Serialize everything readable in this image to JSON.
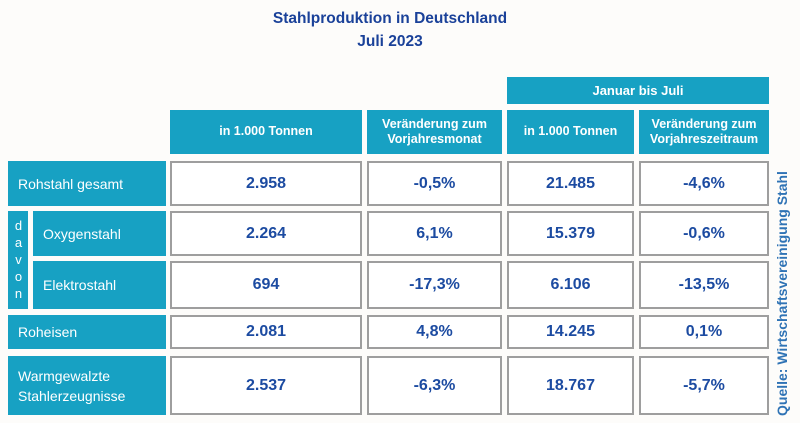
{
  "title": {
    "line1": "Stahlproduktion in Deutschland",
    "line2": "Juli 2023"
  },
  "table": {
    "span_header": "Januar bis Juli",
    "col_headers": [
      "in 1.000 Tonnen",
      "Veränderung zum Vorjahresmonat",
      "in 1.000 Tonnen",
      "Veränderung zum Vorjahreszeitraum"
    ],
    "davon_label": "davon",
    "rows": [
      {
        "label": "Rohstahl gesamt",
        "values": [
          "2.958",
          "-0,5%",
          "21.485",
          "-4,6%"
        ]
      },
      {
        "label": "Oxygenstahl",
        "values": [
          "2.264",
          "6,1%",
          "15.379",
          "-0,6%"
        ]
      },
      {
        "label": "Elektrostahl",
        "values": [
          "694",
          "-17,3%",
          "6.106",
          "-13,5%"
        ]
      },
      {
        "label": "Roheisen",
        "values": [
          "2.081",
          "4,8%",
          "14.245",
          "0,1%"
        ]
      },
      {
        "label": "Warmgewalzte Stahlerzeugnisse",
        "values": [
          "2.537",
          "-6,3%",
          "18.767",
          "-5,7%"
        ]
      }
    ]
  },
  "source": "Quelle: Wirtschaftsvereinigung Stahl",
  "colors": {
    "accent_cyan": "#17a1c3",
    "title_navy": "#1a4199",
    "value_blue": "#1c4ba1",
    "source_blue": "#2f73b5",
    "cell_border_gray": "#9e9e9e"
  },
  "chart_data": {
    "type": "table",
    "title": "Stahlproduktion in Deutschland",
    "subtitle": "Juli 2023",
    "column_groups": [
      {
        "label": "Januar bis Juli",
        "column_indexes": [
          2,
          3
        ]
      }
    ],
    "columns": [
      "in 1.000 Tonnen",
      "Veränderung zum Vorjahresmonat",
      "in 1.000 Tonnen (Januar bis Juli)",
      "Veränderung zum Vorjahreszeitraum (Januar bis Juli)"
    ],
    "units": [
      "1.000 Tonnen",
      "%",
      "1.000 Tonnen",
      "%"
    ],
    "rows": [
      {
        "label": "Rohstahl gesamt",
        "group": null,
        "values": [
          2958,
          -0.5,
          21485,
          -4.6
        ]
      },
      {
        "label": "Oxygenstahl",
        "group": "davon",
        "values": [
          2264,
          6.1,
          15379,
          -0.6
        ]
      },
      {
        "label": "Elektrostahl",
        "group": "davon",
        "values": [
          694,
          -17.3,
          6106,
          -13.5
        ]
      },
      {
        "label": "Roheisen",
        "group": null,
        "values": [
          2081,
          4.8,
          14245,
          0.1
        ]
      },
      {
        "label": "Warmgewalzte Stahlerzeugnisse",
        "group": null,
        "values": [
          2537,
          -6.3,
          18767,
          -5.7
        ]
      }
    ],
    "source": "Quelle: Wirtschaftsvereinigung Stahl"
  }
}
